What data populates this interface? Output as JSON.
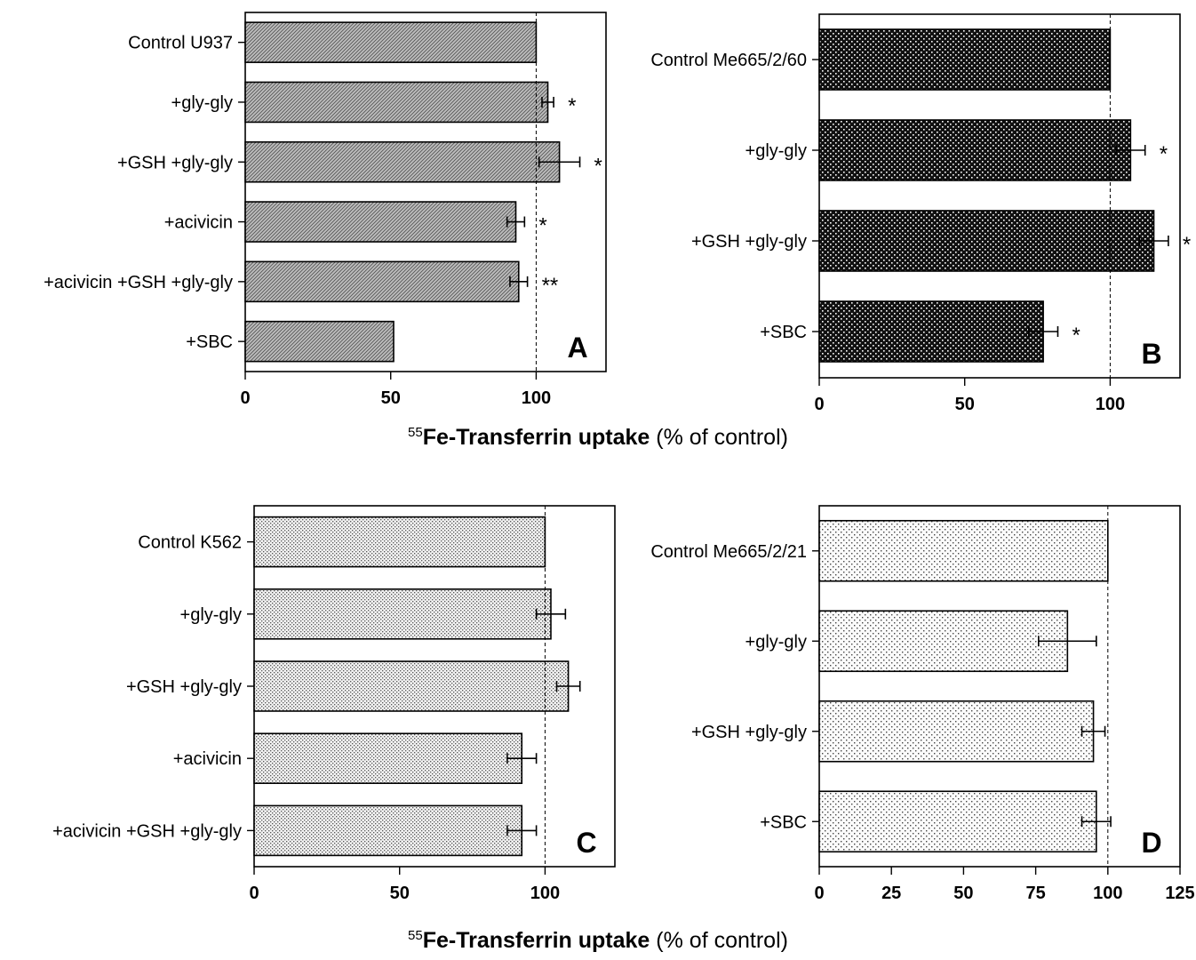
{
  "figure": {
    "top_axis_title": {
      "isotope": "55",
      "main": "Fe-Transferrin uptake",
      "unit": "(% of control)"
    },
    "bottom_axis_title": {
      "isotope": "55",
      "main": "Fe-Transferrin uptake",
      "unit": "(% of control)"
    }
  },
  "chart_data": [
    {
      "type": "bar",
      "orientation": "horizontal",
      "panel_label": "A",
      "categories": [
        "Control U937",
        "+gly-gly",
        "+GSH +gly-gly",
        "+acivicin",
        "+acivicin +GSH +gly-gly",
        "+SBC"
      ],
      "values": [
        100,
        104,
        108,
        93,
        94,
        51
      ],
      "errors": [
        0,
        2,
        7,
        3,
        3,
        0
      ],
      "significance": [
        "",
        "*",
        "*",
        "*",
        "**",
        ""
      ],
      "xlim": [
        0,
        124
      ],
      "xticks": [
        0,
        50,
        100
      ],
      "reference_line": 100,
      "fill_pattern": "dense-hatch",
      "xlabel": "",
      "ylabel": ""
    },
    {
      "type": "bar",
      "orientation": "horizontal",
      "panel_label": "B",
      "categories": [
        "Control Me665/2/60",
        "+gly-gly",
        "+GSH +gly-gly",
        "+SBC"
      ],
      "values": [
        100,
        107,
        115,
        77
      ],
      "errors": [
        0,
        5,
        5,
        5
      ],
      "significance": [
        "",
        "*",
        "*",
        "*"
      ],
      "xlim": [
        0,
        124
      ],
      "xticks": [
        0,
        50,
        100
      ],
      "reference_line": 100,
      "fill_pattern": "dark-dots",
      "xlabel": "",
      "ylabel": ""
    },
    {
      "type": "bar",
      "orientation": "horizontal",
      "panel_label": "C",
      "categories": [
        "Control K562",
        "+gly-gly",
        "+GSH +gly-gly",
        "+acivicin",
        "+acivicin +GSH +gly-gly"
      ],
      "values": [
        100,
        102,
        108,
        92,
        92
      ],
      "errors": [
        0,
        5,
        4,
        5,
        5
      ],
      "significance": [
        "",
        "",
        "",
        "",
        ""
      ],
      "xlim": [
        0,
        124
      ],
      "xticks": [
        0,
        50,
        100
      ],
      "reference_line": 100,
      "fill_pattern": "fine-dots",
      "xlabel": "",
      "ylabel": ""
    },
    {
      "type": "bar",
      "orientation": "horizontal",
      "panel_label": "D",
      "categories": [
        "Control Me665/2/21",
        "+gly-gly",
        "+GSH +gly-gly",
        "+SBC"
      ],
      "values": [
        100,
        86,
        95,
        96
      ],
      "errors": [
        0,
        10,
        4,
        5
      ],
      "significance": [
        "",
        "",
        "",
        ""
      ],
      "xlim": [
        0,
        125
      ],
      "xticks": [
        0,
        25,
        50,
        75,
        100,
        125
      ],
      "reference_line": 100,
      "fill_pattern": "sparse-dots",
      "xlabel": "",
      "ylabel": ""
    }
  ]
}
